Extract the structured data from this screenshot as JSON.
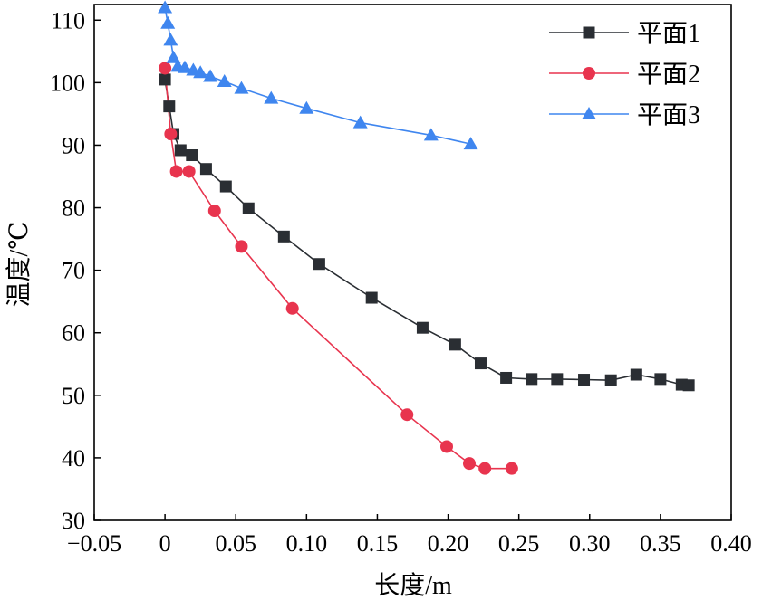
{
  "chart_data": {
    "type": "line",
    "title": "",
    "xlabel": "长度/m",
    "ylabel": "温度/℃",
    "xlim": [
      -0.05,
      0.4
    ],
    "ylim": [
      30,
      110
    ],
    "x_ticks": [
      "−0.05",
      "0",
      "0.05",
      "0.10",
      "0.15",
      "0.20",
      "0.25",
      "0.30",
      "0.35",
      "0.40"
    ],
    "y_ticks": [
      "30",
      "40",
      "50",
      "60",
      "70",
      "80",
      "90",
      "100",
      "110"
    ],
    "grid": false,
    "legend_position": "top-right",
    "series": [
      {
        "name": "平面1",
        "color": "#2a2e33",
        "marker": "square",
        "points": [
          [
            0.0,
            100.5
          ],
          [
            0.003,
            96.2
          ],
          [
            0.006,
            91.8
          ],
          [
            0.011,
            89.2
          ],
          [
            0.019,
            88.4
          ],
          [
            0.029,
            86.2
          ],
          [
            0.043,
            83.4
          ],
          [
            0.059,
            79.9
          ],
          [
            0.084,
            75.4
          ],
          [
            0.109,
            71.0
          ],
          [
            0.146,
            65.6
          ],
          [
            0.182,
            60.8
          ],
          [
            0.205,
            58.1
          ],
          [
            0.223,
            55.1
          ],
          [
            0.241,
            52.8
          ],
          [
            0.259,
            52.6
          ],
          [
            0.277,
            52.6
          ],
          [
            0.296,
            52.5
          ],
          [
            0.315,
            52.4
          ],
          [
            0.333,
            53.3
          ],
          [
            0.35,
            52.6
          ],
          [
            0.365,
            51.7
          ],
          [
            0.37,
            51.6
          ]
        ]
      },
      {
        "name": "平面2",
        "color": "#e8344e",
        "marker": "circle",
        "points": [
          [
            0.0,
            102.3
          ],
          [
            0.004,
            91.8
          ],
          [
            0.008,
            85.8
          ],
          [
            0.017,
            85.8
          ],
          [
            0.035,
            79.5
          ],
          [
            0.054,
            73.8
          ],
          [
            0.09,
            63.9
          ],
          [
            0.171,
            46.9
          ],
          [
            0.199,
            41.8
          ],
          [
            0.215,
            39.1
          ],
          [
            0.226,
            38.3
          ],
          [
            0.245,
            38.3
          ]
        ]
      },
      {
        "name": "平面3",
        "color": "#3f86ef",
        "marker": "triangle",
        "points": [
          [
            0.0,
            112.0
          ],
          [
            0.002,
            109.5
          ],
          [
            0.004,
            106.8
          ],
          [
            0.006,
            104.0
          ],
          [
            0.009,
            102.6
          ],
          [
            0.014,
            102.4
          ],
          [
            0.02,
            102.0
          ],
          [
            0.025,
            101.6
          ],
          [
            0.032,
            101.0
          ],
          [
            0.042,
            100.2
          ],
          [
            0.054,
            99.1
          ],
          [
            0.075,
            97.5
          ],
          [
            0.1,
            95.9
          ],
          [
            0.138,
            93.6
          ],
          [
            0.188,
            91.6
          ],
          [
            0.216,
            90.2
          ]
        ]
      }
    ]
  }
}
